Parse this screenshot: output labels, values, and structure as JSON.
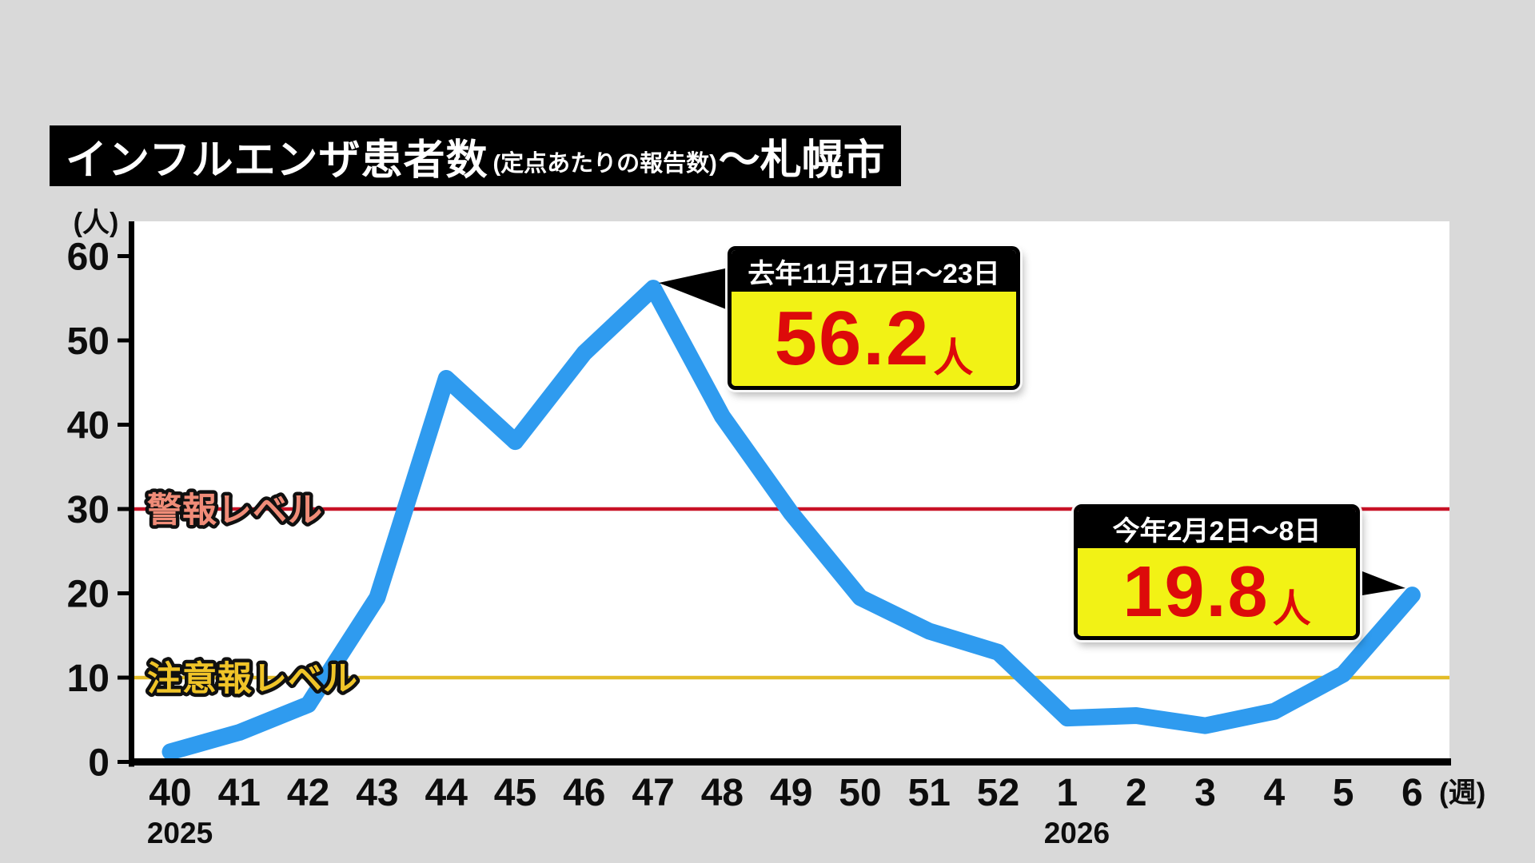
{
  "title": {
    "main": "インフルエンザ患者数",
    "sub": "(定点あたりの報告数)",
    "suffix": "～札幌市"
  },
  "y_axis": {
    "unit": "(人)",
    "ticks": [
      0,
      10,
      20,
      30,
      40,
      50,
      60
    ]
  },
  "x_axis": {
    "unit": "(週)",
    "year_labels": [
      {
        "text": "2025",
        "index": 0
      },
      {
        "text": "2026",
        "index": 13
      }
    ]
  },
  "thresholds": [
    {
      "label": "警報レベル",
      "value": 30,
      "line_color": "#c81226",
      "label_color": "#f08c78"
    },
    {
      "label": "注意報レベル",
      "value": 10,
      "line_color": "#e3bc28",
      "label_color": "#f0c428"
    }
  ],
  "callouts": {
    "peak": {
      "period": "去年11月17日～23日",
      "value": "56.2",
      "unit": "人"
    },
    "now": {
      "period": "今年2月2日～8日",
      "value": "19.8",
      "unit": "人"
    }
  },
  "chart_data": {
    "type": "line",
    "title": "インフルエンザ患者数(定点あたりの報告数)～札幌市",
    "xlabel": "週",
    "ylabel": "人",
    "ylim": [
      0,
      64
    ],
    "grid": false,
    "line_color": "#2f9bef",
    "categories": [
      "40",
      "41",
      "42",
      "43",
      "44",
      "45",
      "46",
      "47",
      "48",
      "49",
      "50",
      "51",
      "52",
      "1",
      "2",
      "3",
      "4",
      "5",
      "6"
    ],
    "values": [
      1.2,
      3.5,
      6.8,
      19.5,
      45.5,
      38,
      48.5,
      56.2,
      41,
      29.5,
      19.5,
      15.5,
      13,
      5.2,
      5.5,
      4.3,
      6,
      10.4,
      19.8
    ],
    "annotations": [
      {
        "x": "47",
        "y": 56.2,
        "text": "去年11月17日～23日 56.2人"
      },
      {
        "x": "6",
        "y": 19.8,
        "text": "今年2月2日～8日 19.8人"
      }
    ]
  },
  "colors": {
    "background": "#d9d9d9",
    "plot_background": "#ffffff",
    "axis": "#000000",
    "line": "#2f9bef",
    "alert_line": "#c81226",
    "caution_line": "#e3bc28",
    "callout_bg": "#f2f215",
    "callout_value": "#dd0a0a"
  }
}
